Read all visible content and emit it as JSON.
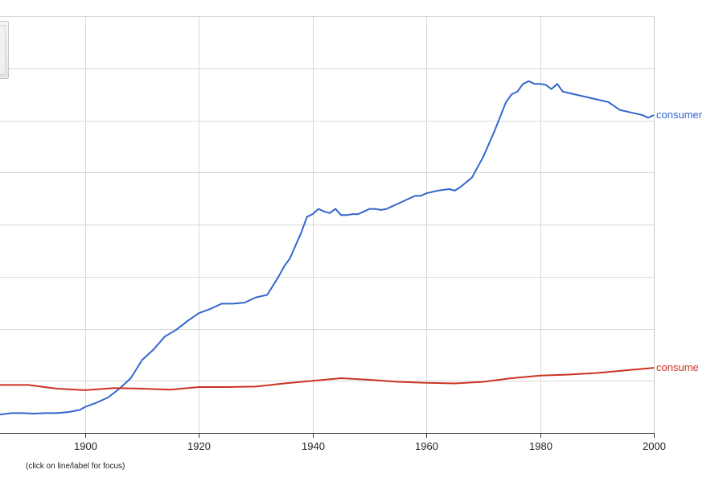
{
  "chart_data": {
    "type": "line",
    "x_range": [
      1885,
      2000
    ],
    "ylim": [
      0,
      8
    ],
    "x_ticks": [
      1900,
      1920,
      1940,
      1960,
      1980,
      2000
    ],
    "grid": true,
    "series": [
      {
        "name": "consumer",
        "color": "#3366cc",
        "x": [
          1885,
          1887,
          1889,
          1891,
          1893,
          1895,
          1897,
          1899,
          1900,
          1902,
          1904,
          1906,
          1908,
          1910,
          1912,
          1914,
          1916,
          1918,
          1920,
          1922,
          1924,
          1926,
          1928,
          1930,
          1932,
          1934,
          1935,
          1936,
          1937,
          1938,
          1939,
          1940,
          1941,
          1942,
          1943,
          1944,
          1945,
          1946,
          1947,
          1948,
          1949,
          1950,
          1951,
          1952,
          1953,
          1954,
          1955,
          1956,
          1957,
          1958,
          1959,
          1960,
          1962,
          1964,
          1965,
          1966,
          1968,
          1970,
          1972,
          1974,
          1975,
          1976,
          1977,
          1978,
          1979,
          1980,
          1981,
          1982,
          1983,
          1984,
          1986,
          1988,
          1990,
          1992,
          1994,
          1996,
          1998,
          1999,
          2000
        ],
        "values": [
          0.35,
          0.38,
          0.38,
          0.37,
          0.38,
          0.38,
          0.4,
          0.44,
          0.5,
          0.58,
          0.68,
          0.85,
          1.05,
          1.4,
          1.6,
          1.85,
          1.98,
          2.15,
          2.3,
          2.38,
          2.48,
          2.48,
          2.5,
          2.6,
          2.65,
          3.0,
          3.2,
          3.35,
          3.6,
          3.85,
          4.15,
          4.2,
          4.3,
          4.25,
          4.22,
          4.3,
          4.18,
          4.18,
          4.2,
          4.2,
          4.25,
          4.3,
          4.3,
          4.28,
          4.3,
          4.35,
          4.4,
          4.45,
          4.5,
          4.55,
          4.55,
          4.6,
          4.65,
          4.68,
          4.65,
          4.72,
          4.9,
          5.3,
          5.8,
          6.35,
          6.5,
          6.55,
          6.7,
          6.75,
          6.7,
          6.7,
          6.68,
          6.6,
          6.7,
          6.55,
          6.5,
          6.45,
          6.4,
          6.35,
          6.2,
          6.15,
          6.1,
          6.05,
          6.1
        ]
      },
      {
        "name": "consume",
        "color": "#cc3322",
        "x": [
          1885,
          1890,
          1895,
          1900,
          1905,
          1910,
          1915,
          1920,
          1925,
          1930,
          1935,
          1940,
          1945,
          1950,
          1955,
          1960,
          1965,
          1970,
          1975,
          1980,
          1985,
          1990,
          1995,
          2000
        ],
        "values": [
          0.92,
          0.92,
          0.85,
          0.82,
          0.86,
          0.85,
          0.83,
          0.88,
          0.88,
          0.89,
          0.95,
          1.0,
          1.05,
          1.02,
          0.98,
          0.96,
          0.95,
          0.98,
          1.05,
          1.1,
          1.12,
          1.15,
          1.2,
          1.25
        ]
      }
    ]
  },
  "footnote": "(click on line/label for focus)"
}
